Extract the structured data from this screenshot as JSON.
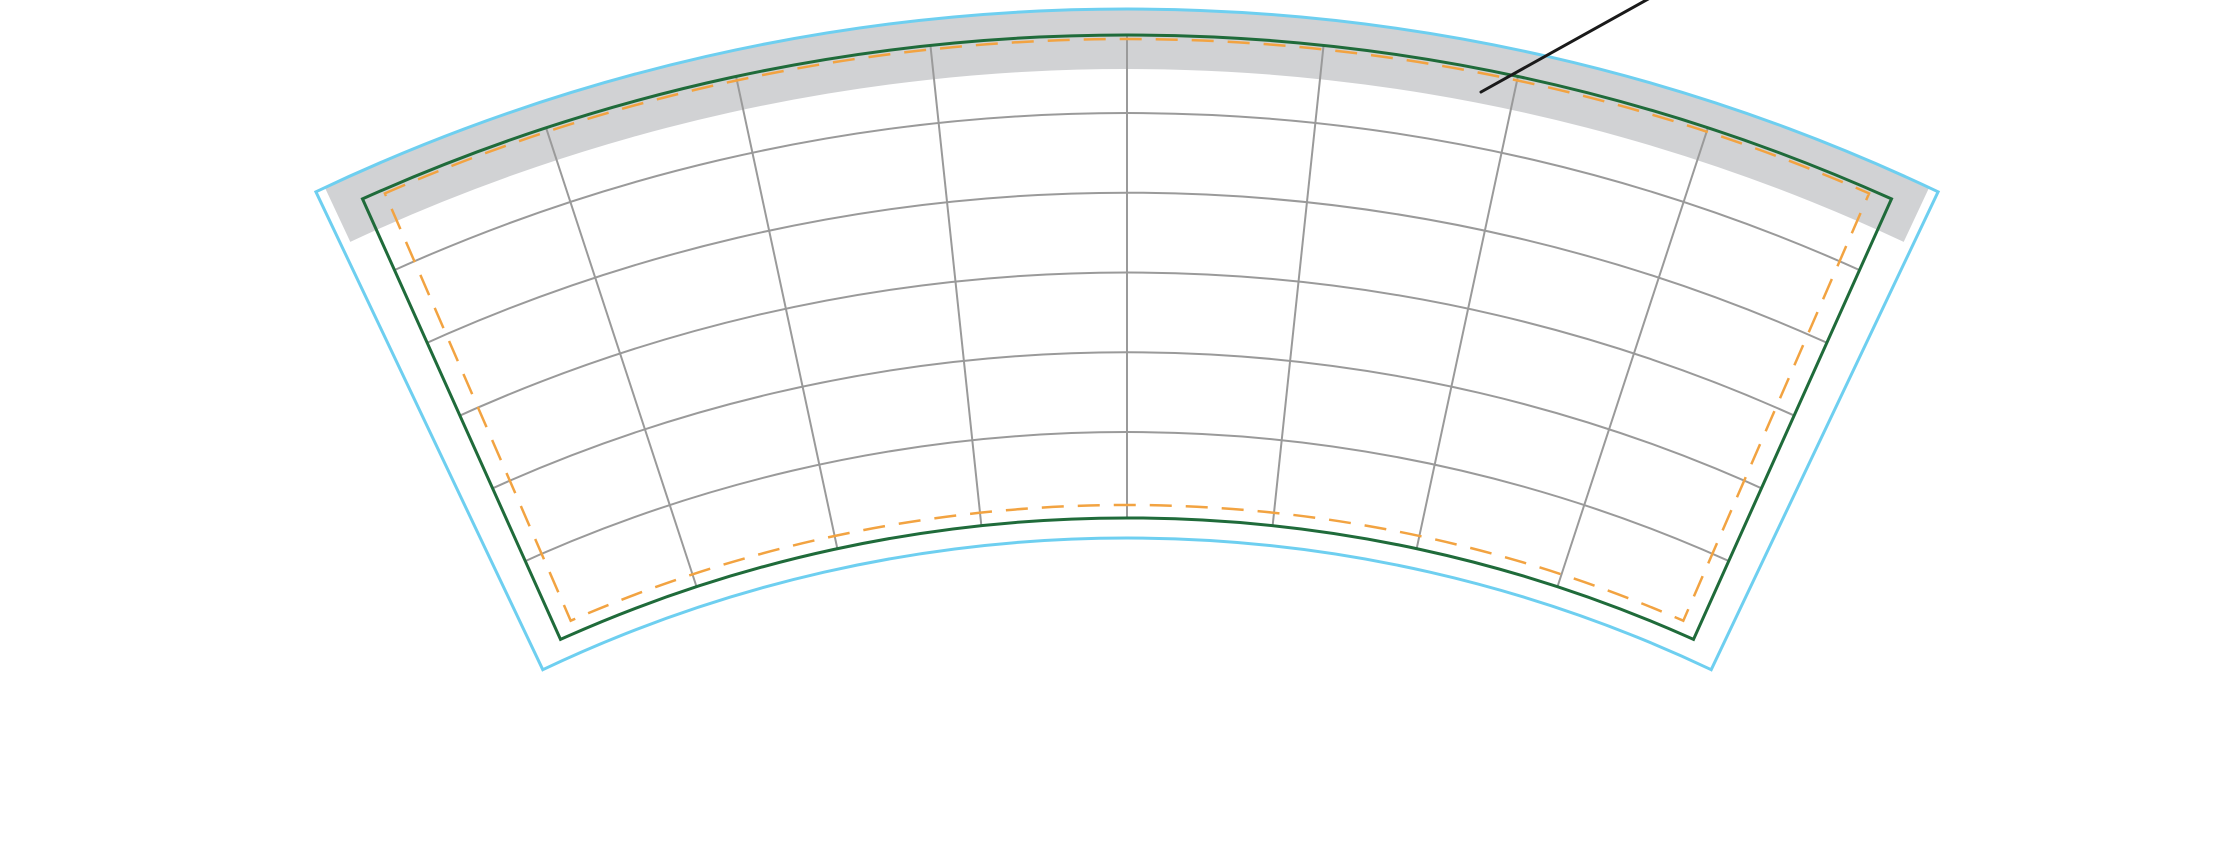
{
  "template": {
    "shape": "curved-sleeve-wrap",
    "guides": {
      "bleed_line": {
        "color": "#6ecff0",
        "style": "solid"
      },
      "trim_line": {
        "color": "#1f6b3a",
        "style": "solid"
      },
      "safe_area": {
        "color": "#f2a341",
        "style": "dashed"
      },
      "top_shaded_band": {
        "color": "#d1d2d4"
      },
      "grid": {
        "color": "#9a9a9a",
        "rows": 6,
        "columns": 8
      },
      "pointer_line": {
        "color": "#1a1a1a"
      }
    }
  }
}
